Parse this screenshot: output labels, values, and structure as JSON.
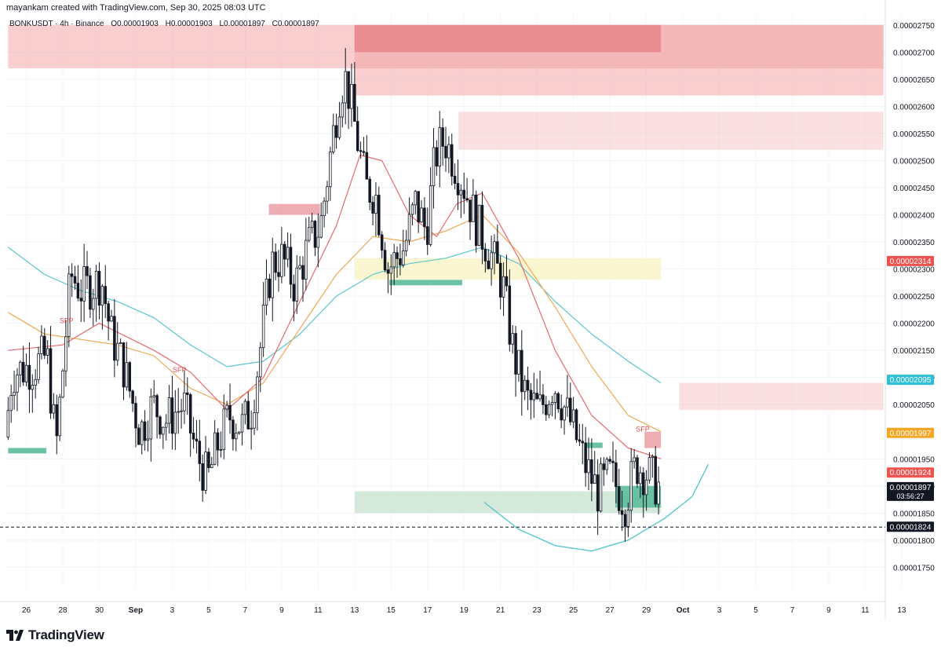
{
  "header": {
    "credit": "mayankam created with TradingView.com, Sep 30, 2025 08:03 UTC"
  },
  "legend": {
    "symbol": "BONKUSDT · 4h · Binance",
    "open": "O0.00001903",
    "high": "H0.00001903",
    "low": "L0.00001897",
    "close": "C0.00001897"
  },
  "footer": {
    "brand": "TradingView"
  },
  "colors": {
    "up": "#ffffff",
    "down": "#131722",
    "supply": "#f2a5a8",
    "supply_dark": "#e06a72",
    "demand": "#63bfa0",
    "demand_light": "#cfe7d6",
    "fvg_yellow": "#fbf6d2",
    "ema_fast": "#e86a6f",
    "ema_mid": "#f0a854",
    "ema_slow": "#5bc6cf"
  },
  "chart_data": {
    "type": "candlestick",
    "symbol": "BONKUSDT",
    "timeframe": "4h",
    "exchange": "Binance",
    "x_ticks": [
      "26",
      "28",
      "30",
      "Sep",
      "3",
      "5",
      "7",
      "9",
      "11",
      "13",
      "15",
      "17",
      "19",
      "21",
      "23",
      "25",
      "27",
      "29",
      "Oct",
      "3",
      "5",
      "7",
      "9",
      "11",
      "13"
    ],
    "y_ticks": [
      "0.00002750",
      "0.00002700",
      "0.00002650",
      "0.00002600",
      "0.00002550",
      "0.00002500",
      "0.00002450",
      "0.00002400",
      "0.00002350",
      "0.00002300",
      "0.00002250",
      "0.00002200",
      "0.00002150",
      "0.00002100",
      "0.00002050",
      "0.00001950",
      "0.00001900",
      "0.00001850",
      "0.00001800",
      "0.00001750"
    ],
    "ylim": [
      1.71e-05,
      2.77e-05
    ],
    "price_labels": [
      {
        "value": 2.314e-05,
        "text": "0.00002314",
        "color": "#ef5350"
      },
      {
        "value": 2.095e-05,
        "text": "0.00002095",
        "color": "#2dbfd4"
      },
      {
        "value": 1.997e-05,
        "text": "0.00001997",
        "color": "#f5a623"
      },
      {
        "value": 1.924e-05,
        "text": "0.00001924",
        "color": "#ef5350"
      },
      {
        "value": 1.897e-05,
        "text": "0.00001897",
        "color": "#131722",
        "sub": "03:56:27"
      },
      {
        "value": 1.824e-05,
        "text": "0.00001824",
        "color": "#131722"
      }
    ],
    "dashed_level": 1.824e-05,
    "annotations": [
      {
        "text": "SFP",
        "day": 28.2,
        "price": 2.2e-05
      },
      {
        "text": "SFP",
        "day": 34.4,
        "price": 2.11e-05
      },
      {
        "text": "SFP",
        "day": 59.8,
        "price": 2e-05
      }
    ],
    "zones": [
      {
        "type": "supply",
        "from_day": 25.0,
        "to_day": 73.0,
        "low": 2.67e-05,
        "high": 2.75e-05
      },
      {
        "type": "supply",
        "from_day": 44.0,
        "to_day": 73.0,
        "low": 2.62e-05,
        "high": 2.75e-05
      },
      {
        "type": "supply_strong",
        "from_day": 44.0,
        "to_day": 60.8,
        "low": 2.7e-05,
        "high": 2.75e-05
      },
      {
        "type": "supply_light",
        "from_day": 49.7,
        "to_day": 73.0,
        "low": 2.52e-05,
        "high": 2.59e-05
      },
      {
        "type": "supply_light",
        "from_day": 61.8,
        "to_day": 73.0,
        "low": 2.04e-05,
        "high": 2.09e-05
      },
      {
        "type": "fvg",
        "from_day": 44.0,
        "to_day": 60.8,
        "low": 2.28e-05,
        "high": 2.32e-05
      },
      {
        "type": "demand_light",
        "from_day": 44.0,
        "to_day": 60.8,
        "low": 1.85e-05,
        "high": 1.89e-05
      },
      {
        "type": "demand",
        "from_day": 25.0,
        "to_day": 27.1,
        "low": 1.96e-05,
        "high": 1.97e-05
      },
      {
        "type": "demand",
        "from_day": 45.9,
        "to_day": 49.9,
        "low": 2.27e-05,
        "high": 2.28e-05
      },
      {
        "type": "demand",
        "from_day": 56.6,
        "to_day": 57.6,
        "low": 1.97e-05,
        "high": 1.98e-05
      },
      {
        "type": "demand",
        "from_day": 58.3,
        "to_day": 60.8,
        "low": 1.86e-05,
        "high": 1.9e-05
      },
      {
        "type": "supply_strong",
        "from_day": 39.3,
        "to_day": 42.1,
        "low": 2.4e-05,
        "high": 2.42e-05
      },
      {
        "type": "supply_strong",
        "from_day": 59.9,
        "to_day": 60.8,
        "low": 1.97e-05,
        "high": 2e-05
      }
    ],
    "candles_per_day": 6,
    "start_day": 25.0,
    "path": [
      [
        25.0,
        1.99e-05
      ],
      [
        25.4,
        2.11e-05
      ],
      [
        26.5,
        2.12e-05
      ],
      [
        27.3,
        2.14e-05
      ],
      [
        27.8,
        1.97e-05
      ],
      [
        28.6,
        2.29e-05
      ],
      [
        29.2,
        2.26e-05
      ],
      [
        30.3,
        2.28e-05
      ],
      [
        30.8,
        2.18e-05
      ],
      [
        31.5,
        2.12e-05
      ],
      [
        32.4,
        2e-05
      ],
      [
        33.1,
        2.05e-05
      ],
      [
        33.8,
        2.02e-05
      ],
      [
        34.8,
        2.05e-05
      ],
      [
        35.5,
        1.96e-05
      ],
      [
        36.1,
        1.91e-05
      ],
      [
        36.7,
        1.98e-05
      ],
      [
        37.3,
        2.03e-05
      ],
      [
        38.0,
        2.01e-05
      ],
      [
        38.5,
        2.04e-05
      ],
      [
        38.9,
        2.13e-05
      ],
      [
        39.6,
        2.31e-05
      ],
      [
        40.2,
        2.32e-05
      ],
      [
        40.9,
        2.27e-05
      ],
      [
        41.6,
        2.34e-05
      ],
      [
        42.3,
        2.38e-05
      ],
      [
        43.0,
        2.55e-05
      ],
      [
        43.4,
        2.64e-05
      ],
      [
        43.7,
        2.65e-05
      ],
      [
        44.2,
        2.56e-05
      ],
      [
        44.8,
        2.45e-05
      ],
      [
        45.3,
        2.44e-05
      ],
      [
        46.0,
        2.3e-05
      ],
      [
        46.9,
        2.34e-05
      ],
      [
        47.5,
        2.42e-05
      ],
      [
        48.1,
        2.37e-05
      ],
      [
        48.6,
        2.51e-05
      ],
      [
        49.1,
        2.54e-05
      ],
      [
        49.6,
        2.5e-05
      ],
      [
        50.1,
        2.46e-05
      ],
      [
        50.9,
        2.38e-05
      ],
      [
        51.6,
        2.33e-05
      ],
      [
        52.3,
        2.27e-05
      ],
      [
        52.9,
        2.14e-05
      ],
      [
        53.6,
        2.06e-05
      ],
      [
        54.3,
        2.04e-05
      ],
      [
        55.1,
        2.09e-05
      ],
      [
        55.6,
        2.05e-05
      ],
      [
        56.1,
        2.01e-05
      ],
      [
        56.8,
        1.94e-05
      ],
      [
        57.5,
        1.89e-05
      ],
      [
        58.2,
        1.92e-05
      ],
      [
        59.0,
        1.87e-05
      ],
      [
        59.6,
        1.94e-05
      ],
      [
        60.3,
        1.92e-05
      ],
      [
        60.8,
        1.9e-05
      ]
    ],
    "ema_fast": [
      [
        25.0,
        2.15e-05
      ],
      [
        28.0,
        2.16e-05
      ],
      [
        30.0,
        2.2e-05
      ],
      [
        33.0,
        2.15e-05
      ],
      [
        35.0,
        2.11e-05
      ],
      [
        37.0,
        2.04e-05
      ],
      [
        39.0,
        2.1e-05
      ],
      [
        41.0,
        2.24e-05
      ],
      [
        43.0,
        2.38e-05
      ],
      [
        44.3,
        2.51e-05
      ],
      [
        45.5,
        2.5e-05
      ],
      [
        47.0,
        2.4e-05
      ],
      [
        48.5,
        2.36e-05
      ],
      [
        49.6,
        2.42e-05
      ],
      [
        51.0,
        2.44e-05
      ],
      [
        53.0,
        2.32e-05
      ],
      [
        55.0,
        2.15e-05
      ],
      [
        57.0,
        2.03e-05
      ],
      [
        59.0,
        1.97e-05
      ],
      [
        60.8,
        1.95e-05
      ]
    ],
    "ema_mid": [
      [
        25.0,
        2.22e-05
      ],
      [
        27.0,
        2.18e-05
      ],
      [
        29.0,
        2.17e-05
      ],
      [
        31.0,
        2.16e-05
      ],
      [
        33.0,
        2.14e-05
      ],
      [
        35.0,
        2.08e-05
      ],
      [
        37.0,
        2.05e-05
      ],
      [
        39.0,
        2.09e-05
      ],
      [
        41.0,
        2.19e-05
      ],
      [
        43.0,
        2.29e-05
      ],
      [
        45.0,
        2.36e-05
      ],
      [
        47.0,
        2.35e-05
      ],
      [
        49.0,
        2.37e-05
      ],
      [
        51.0,
        2.4e-05
      ],
      [
        53.0,
        2.33e-05
      ],
      [
        55.0,
        2.23e-05
      ],
      [
        57.0,
        2.12e-05
      ],
      [
        59.0,
        2.03e-05
      ],
      [
        60.8,
        2e-05
      ]
    ],
    "ema_slow": [
      [
        25.0,
        2.34e-05
      ],
      [
        27.0,
        2.29e-05
      ],
      [
        29.0,
        2.26e-05
      ],
      [
        31.0,
        2.24e-05
      ],
      [
        33.0,
        2.21e-05
      ],
      [
        35.0,
        2.16e-05
      ],
      [
        37.0,
        2.12e-05
      ],
      [
        39.0,
        2.13e-05
      ],
      [
        41.0,
        2.18e-05
      ],
      [
        43.0,
        2.25e-05
      ],
      [
        45.0,
        2.29e-05
      ],
      [
        47.0,
        2.31e-05
      ],
      [
        49.0,
        2.32e-05
      ],
      [
        51.0,
        2.34e-05
      ],
      [
        53.0,
        2.31e-05
      ],
      [
        55.0,
        2.24e-05
      ],
      [
        57.0,
        2.18e-05
      ],
      [
        59.0,
        2.13e-05
      ],
      [
        60.8,
        2.09e-05
      ]
    ],
    "projection_curve": [
      [
        51.1,
        1.87e-05
      ],
      [
        53.0,
        1.82e-05
      ],
      [
        55.0,
        1.79e-05
      ],
      [
        57.0,
        1.78e-05
      ],
      [
        59.0,
        1.8e-05
      ],
      [
        61.0,
        1.84e-05
      ],
      [
        62.5,
        1.88e-05
      ],
      [
        63.4,
        1.94e-05
      ]
    ]
  }
}
